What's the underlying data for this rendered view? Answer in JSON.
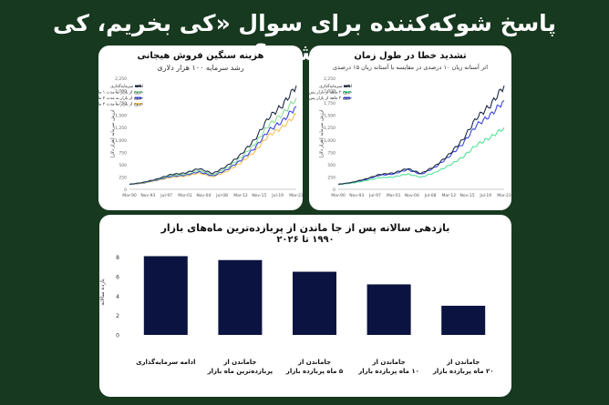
{
  "headline": "پاسخ شوکه‌کننده برای سوال «کی بخریم، کی بفروشیم؟»",
  "colors": {
    "background": "#17391f",
    "navy": "#0b1340",
    "dark": "#1c2b45",
    "blue": "#3b46e0",
    "green": "#54e29a",
    "yellow": "#f2c452",
    "light_green": "#8cdf9a"
  },
  "chart_data": [
    {
      "type": "line",
      "title": "هزینه سنگین فروش هیجانی",
      "subtitle": "رشد سرمایه ۱۰۰ هزار دلاری",
      "ylabel": "ارزش سرمایه (هزار دلار)",
      "x_ticks": [
        "Mar-90",
        "Nov-93",
        "Jul-97",
        "Mar-01",
        "Nov-04",
        "Jul-08",
        "Mar-12",
        "Nov-15",
        "Jul-19",
        "Mar-23"
      ],
      "y_ticks": [
        0,
        250,
        500,
        750,
        1000,
        1250,
        1500,
        1750,
        2000,
        2250
      ],
      "ylim": [
        0,
        2250
      ],
      "legend": "top-left",
      "series": [
        {
          "name": "ادامه سرمایه‌گذاری",
          "color": "#1c2b45",
          "values": [
            100,
            140,
            210,
            300,
            330,
            420,
            320,
            470,
            700,
            1000,
            1450,
            1700,
            2100
          ]
        },
        {
          "name": "خروج از بازار به مدت ۱ ماه",
          "color": "#8cdf9a",
          "values": [
            100,
            135,
            200,
            280,
            305,
            385,
            295,
            430,
            640,
            910,
            1300,
            1520,
            1850
          ]
        },
        {
          "name": "خروج از بازار به مدت ۲ ماه",
          "color": "#3b46e0",
          "values": [
            100,
            130,
            190,
            262,
            285,
            355,
            272,
            395,
            585,
            830,
            1190,
            1380,
            1680
          ]
        },
        {
          "name": "خروج از بازار به مدت ۳ ماه",
          "color": "#f2c452",
          "values": [
            100,
            125,
            180,
            245,
            265,
            330,
            252,
            362,
            535,
            760,
            1090,
            1260,
            1520
          ]
        }
      ]
    },
    {
      "type": "line",
      "title": "تشدید خطا در طول زمان",
      "subtitle": "اثر آستانه زیان ۱۰ درصدی در مقایسه با آستانه زیان ۱۵ درصدی",
      "ylabel": "ارزش سرمایه (هزار دلار)",
      "x_ticks": [
        "Mar-90",
        "Nov-93",
        "Jul-97",
        "Mar-01",
        "Nov-04",
        "Jul-08",
        "Mar-12",
        "Nov-15",
        "Jul-19",
        "Mar-23"
      ],
      "y_ticks": [
        0,
        250,
        500,
        750,
        1000,
        1250,
        1500,
        1750,
        2000,
        2250
      ],
      "ylim": [
        0,
        2250
      ],
      "legend": "top-left",
      "series": [
        {
          "name": "ادامه سرمایه‌گذاری",
          "color": "#1c2b45",
          "values": [
            100,
            140,
            210,
            300,
            330,
            420,
            320,
            470,
            700,
            1000,
            1450,
            1700,
            2100
          ]
        },
        {
          "name": "خروج ۳ ماهه از بازار پس از افت ۱۰ درصدی",
          "color": "#54e29a",
          "values": [
            100,
            125,
            175,
            235,
            250,
            310,
            245,
            340,
            480,
            650,
            900,
            1050,
            1250
          ]
        },
        {
          "name": "خروج ۳ ماهه از بازار پس از افت ۱۵ درصدی",
          "color": "#3b46e0",
          "values": [
            100,
            135,
            200,
            285,
            310,
            400,
            305,
            445,
            660,
            920,
            1300,
            1500,
            1800
          ]
        }
      ]
    },
    {
      "type": "bar",
      "title": "بازدهی سالانه پس از جا ماندن از پربازده‌ترین ماه‌های بازار",
      "subtitle": "۱۹۹۰ تا ۲۰۲۶",
      "ylabel": "بازده سالانه",
      "y_ticks": [
        0,
        2,
        4,
        6,
        8
      ],
      "ylim": [
        0,
        8.8
      ],
      "color": "#0b1340",
      "categories": [
        [
          "ادامه سرمایه‌گذاری"
        ],
        [
          "جاماندن از",
          "پربازده‌ترین ماه بازار"
        ],
        [
          "جاماندن از",
          "۵ ماه پربازده بازار"
        ],
        [
          "جاماندن از",
          "۱۰ ماه پربازده بازار"
        ],
        [
          "جاماندن از",
          "۲۰ ماه پربازده بازار"
        ]
      ],
      "values": [
        8.1,
        7.7,
        6.5,
        5.2,
        3.0
      ]
    }
  ]
}
